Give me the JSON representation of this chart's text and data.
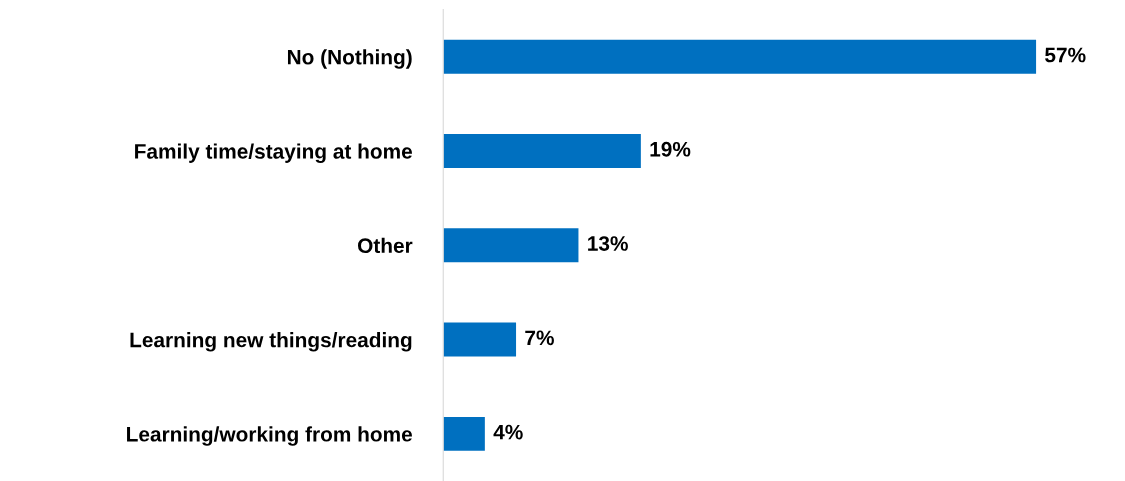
{
  "chart_data": {
    "type": "bar",
    "orientation": "horizontal",
    "categories": [
      "No (Nothing)",
      "Family time/staying at home",
      "Other",
      "Learning new things/reading",
      "Learning/working from home"
    ],
    "values": [
      57,
      19,
      13,
      7,
      4
    ],
    "value_labels": [
      "57%",
      "19%",
      "13%",
      "7%",
      "4%"
    ],
    "color": "#0070c0",
    "grid": false
  }
}
